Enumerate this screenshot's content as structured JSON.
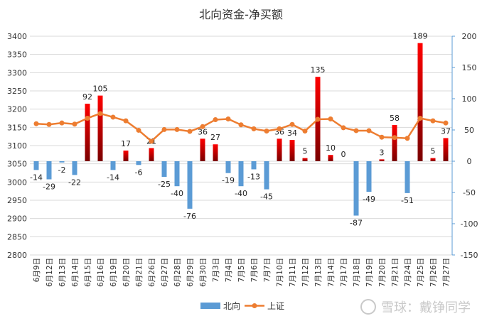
{
  "chart_data": {
    "type": "bar+line",
    "title": "北向资金-净买额",
    "categories": [
      "6月9日",
      "6月12日",
      "6月13日",
      "6月14日",
      "6月15日",
      "6月16日",
      "6月19日",
      "6月20日",
      "6月21日",
      "6月26日",
      "6月27日",
      "6月28日",
      "6月29日",
      "6月30日",
      "7月3日",
      "7月4日",
      "7月5日",
      "7月6日",
      "7月7日",
      "7月10日",
      "7月11日",
      "7月12日",
      "7月13日",
      "7月14日",
      "7月17日",
      "7月18日",
      "7月19日",
      "7月20日",
      "7月21日",
      "7月24日",
      "7月25日",
      "7月26日",
      "7月27日"
    ],
    "left_axis": {
      "min": 2800,
      "max": 3400,
      "step": 50
    },
    "right_axis": {
      "min": -150,
      "max": 200,
      "step": 50
    },
    "series": [
      {
        "name": "北向",
        "type": "bar",
        "axis": "right",
        "values": [
          -14,
          -29,
          -2,
          -22,
          92,
          105,
          -14,
          17,
          -6,
          21,
          -25,
          -40,
          -76,
          36,
          27,
          -19,
          -40,
          -13,
          -45,
          36,
          34,
          5,
          135,
          10,
          0,
          -87,
          -49,
          3,
          58,
          -51,
          189,
          5,
          37
        ],
        "negative_color": "#5b9bd5",
        "positive_color": "#c00000"
      },
      {
        "name": "上证",
        "type": "line",
        "axis": "left",
        "values": [
          3160,
          3158,
          3162,
          3159,
          3175,
          3188,
          3178,
          3168,
          3142,
          3112,
          3144,
          3144,
          3139,
          3152,
          3171,
          3173,
          3157,
          3146,
          3140,
          3146,
          3158,
          3140,
          3172,
          3173,
          3149,
          3141,
          3141,
          3123,
          3122,
          3120,
          3175,
          3168,
          3162
        ],
        "color": "#ed7d31"
      }
    ],
    "legend": {
      "position": "bottom",
      "items": [
        "北向",
        "上证"
      ]
    }
  },
  "watermark": "雪球：戴铮同学"
}
